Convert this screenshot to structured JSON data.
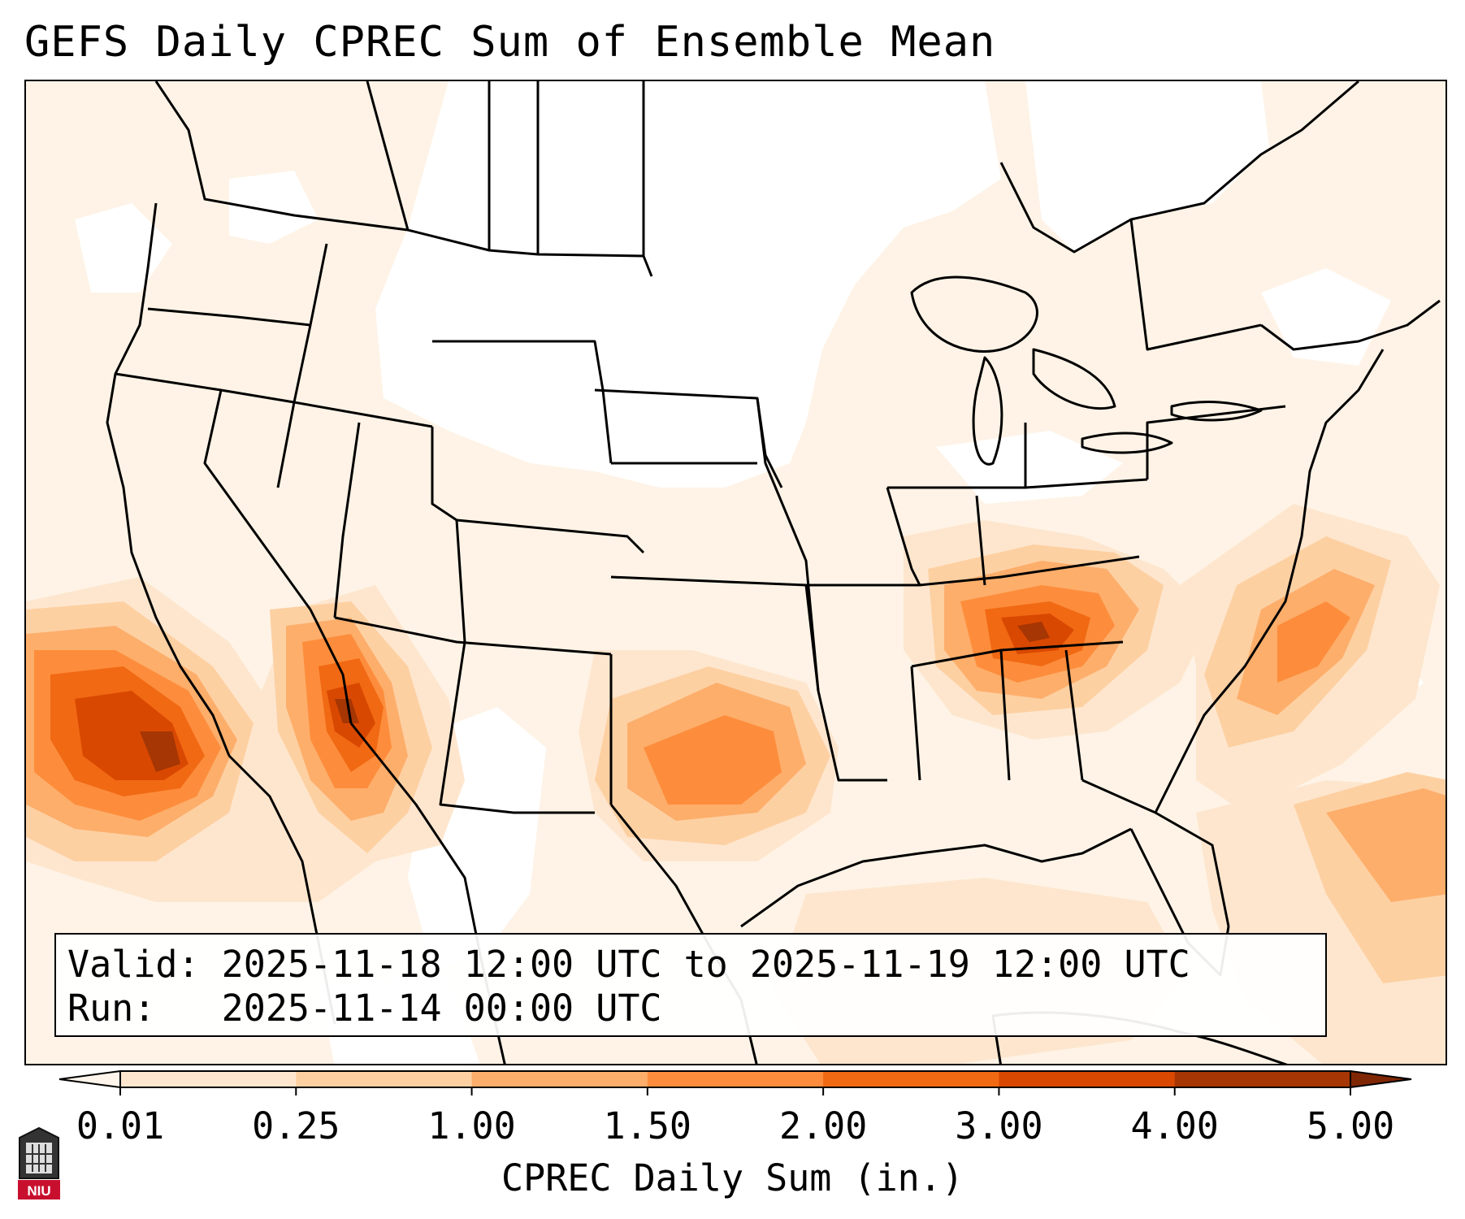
{
  "title": "GEFS Daily CPREC Sum of Ensemble Mean",
  "info": {
    "valid_label": "Valid:",
    "valid_value": "2025-11-18 12:00 UTC to 2025-11-19 12:00 UTC",
    "run_label": "Run:",
    "run_value": "2025-11-14 00:00 UTC"
  },
  "colorbar": {
    "label": "CPREC Daily Sum (in.)",
    "ticks": [
      "0.01",
      "0.25",
      "1.00",
      "1.50",
      "2.00",
      "3.00",
      "4.00",
      "5.00"
    ],
    "colors": [
      "#fff5eb",
      "#fee6ce",
      "#fdd0a2",
      "#fdae6b",
      "#fd8d3c",
      "#f16913",
      "#d94801",
      "#a63603",
      "#7f2704"
    ],
    "extend": "both"
  },
  "logo": {
    "text": "NIU",
    "icon": "niu-logo-icon"
  },
  "map": {
    "projection": "Lambert Conformal (CONUS)",
    "borders": [
      "states",
      "countries",
      "coastlines"
    ]
  }
}
